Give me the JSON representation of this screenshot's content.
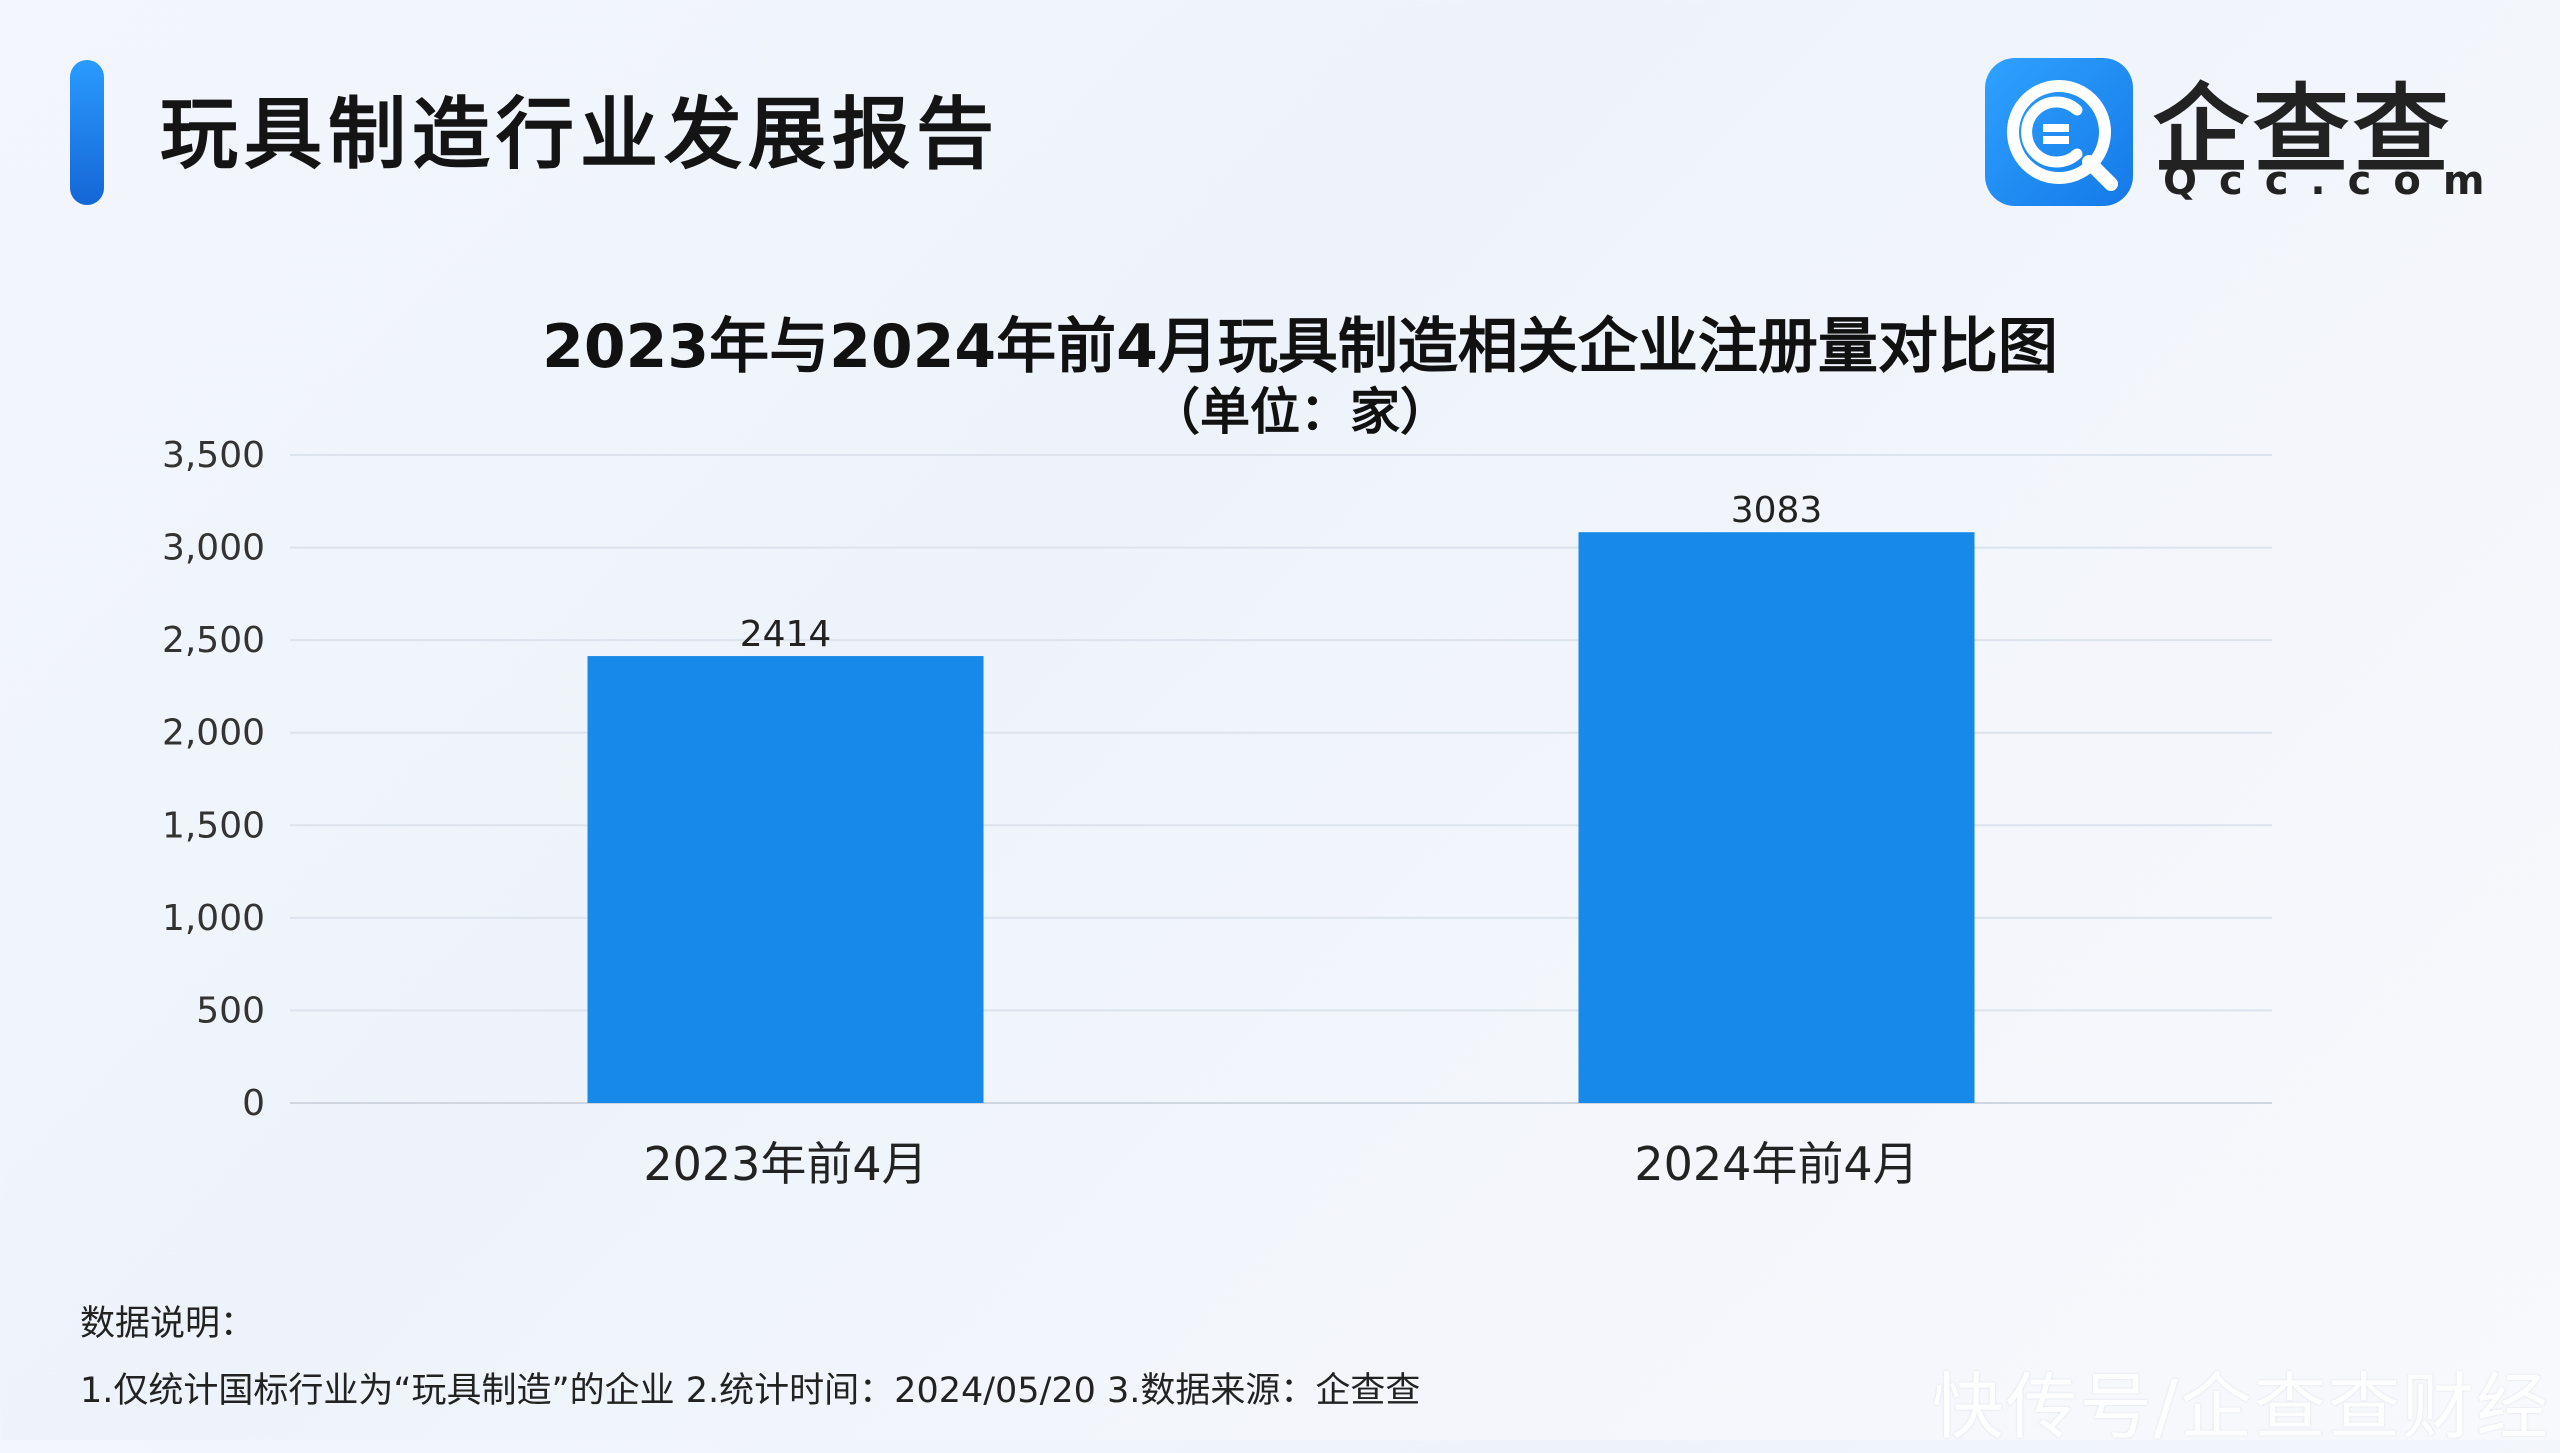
{
  "header": {
    "title": "玩具制造行业发展报告",
    "logo_cn": "企查查",
    "logo_en": "Qcc.com"
  },
  "chart_data": {
    "type": "bar",
    "title": "2023年与2024年前4月玩具制造相关企业注册量对比图",
    "subtitle": "（单位：家）",
    "categories": [
      "2023年前4月",
      "2024年前4月"
    ],
    "values": [
      2414,
      3083
    ],
    "data_labels": [
      "2414",
      "3083"
    ],
    "ylim": [
      0,
      3500
    ],
    "yticks": [
      0,
      500,
      1000,
      1500,
      2000,
      2500,
      3000,
      3500
    ],
    "ytick_labels": [
      "0",
      "500",
      "1,000",
      "1,500",
      "2,000",
      "2,500",
      "3,000",
      "3,500"
    ],
    "grid": true,
    "bar_color": "#1789e8",
    "gridline_color": "#dde3ec"
  },
  "notes": {
    "heading": "数据说明：",
    "line": "1.仅统计国标行业为“玩具制造”的企业   2.统计时间：2024/05/20    3.数据来源：企查查"
  },
  "watermark": "快传号/企查查财经"
}
